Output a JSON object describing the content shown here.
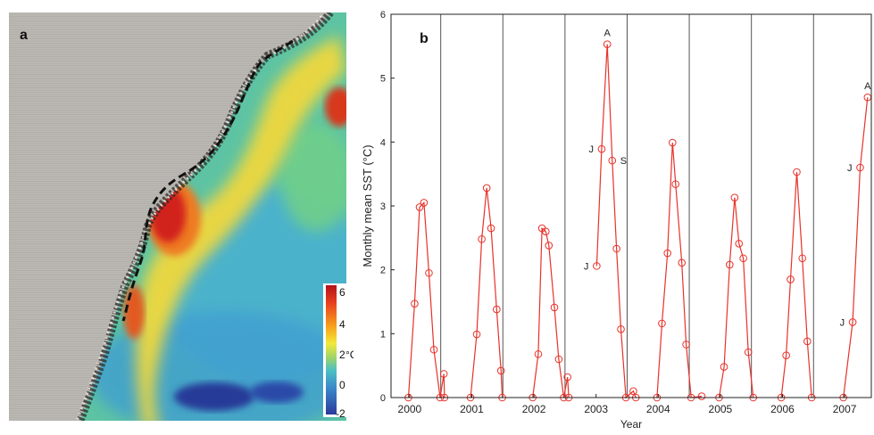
{
  "panel_a": {
    "label": "a",
    "colorbar": {
      "ticks": [
        "6",
        "4",
        "2",
        "0",
        "-2"
      ],
      "unit": "°C",
      "colors": [
        "#b3121a",
        "#e9411e",
        "#f7a21c",
        "#f2e93a",
        "#9ed46a",
        "#4bbfc4",
        "#3a86c8",
        "#2b3a9c"
      ]
    },
    "colors": {
      "land": "#b9b6b1",
      "ocean_mid": "#5fc79a",
      "ocean_cool": "#4aa9d6",
      "warm": "#f2d13a",
      "hot": "#d8281e",
      "path": "#111111"
    }
  },
  "panel_b": {
    "label": "b"
  },
  "chart_data": {
    "type": "line",
    "title": "",
    "xlabel": "Year",
    "ylabel": "Monthly mean SST (°C)",
    "ylim": [
      0,
      6
    ],
    "yticks": [
      "0",
      "1",
      "2",
      "3",
      "4",
      "5",
      "6"
    ],
    "x_range": [
      1999.7,
      2007.43
    ],
    "year_labels": [
      "2000",
      "2001",
      "2002",
      "2003",
      "2004",
      "2005",
      "2006",
      "2007"
    ],
    "year_boundaries": [
      2000.5,
      2001.5,
      2002.5,
      2003.5,
      2004.5,
      2005.5,
      2006.5
    ],
    "line_color": "#e8322a",
    "series": [
      {
        "values": [
          [
            1999.98,
            0.0
          ],
          [
            2000.08,
            1.47
          ],
          [
            2000.16,
            2.98
          ],
          [
            2000.23,
            3.05
          ],
          [
            2000.31,
            1.95
          ],
          [
            2000.39,
            0.75
          ],
          [
            2000.49,
            0.0
          ],
          [
            2000.55,
            0.37
          ],
          [
            2000.56,
            0.0
          ]
        ]
      },
      {
        "values": [
          [
            2000.98,
            0.0
          ],
          [
            2001.08,
            0.99
          ],
          [
            2001.16,
            2.48
          ],
          [
            2001.24,
            3.28
          ],
          [
            2001.31,
            2.65
          ],
          [
            2001.4,
            1.38
          ],
          [
            2001.47,
            0.42
          ],
          [
            2001.49,
            0.0
          ]
        ]
      },
      {
        "values": [
          [
            2001.98,
            0.0
          ],
          [
            2002.07,
            0.68
          ],
          [
            2002.13,
            2.65
          ],
          [
            2002.19,
            2.6
          ],
          [
            2002.24,
            2.38
          ],
          [
            2002.33,
            1.41
          ],
          [
            2002.4,
            0.6
          ],
          [
            2002.48,
            0.0
          ],
          [
            2002.54,
            0.32
          ],
          [
            2002.56,
            0.0
          ]
        ]
      },
      {
        "values": [
          [
            2003.01,
            2.06
          ],
          [
            2003.09,
            3.89
          ],
          [
            2003.18,
            5.53
          ],
          [
            2003.26,
            3.71
          ],
          [
            2003.33,
            2.33
          ],
          [
            2003.4,
            1.07
          ],
          [
            2003.48,
            0.0
          ],
          [
            2003.6,
            0.1
          ],
          [
            2003.64,
            0.0
          ]
        ]
      },
      {
        "values": [
          [
            2003.98,
            0.0
          ],
          [
            2004.06,
            1.16
          ],
          [
            2004.15,
            2.26
          ],
          [
            2004.23,
            3.99
          ],
          [
            2004.28,
            3.34
          ],
          [
            2004.38,
            2.11
          ],
          [
            2004.45,
            0.83
          ],
          [
            2004.53,
            0.0
          ],
          [
            2004.7,
            0.02
          ]
        ]
      },
      {
        "values": [
          [
            2004.98,
            0.0
          ],
          [
            2005.06,
            0.48
          ],
          [
            2005.15,
            2.08
          ],
          [
            2005.23,
            3.13
          ],
          [
            2005.3,
            2.41
          ],
          [
            2005.37,
            2.18
          ],
          [
            2005.45,
            0.71
          ],
          [
            2005.53,
            0.0
          ]
        ]
      },
      {
        "values": [
          [
            2005.98,
            0.0
          ],
          [
            2006.06,
            0.66
          ],
          [
            2006.13,
            1.85
          ],
          [
            2006.23,
            3.53
          ],
          [
            2006.32,
            2.18
          ],
          [
            2006.4,
            0.88
          ],
          [
            2006.47,
            0.0
          ]
        ]
      },
      {
        "values": [
          [
            2006.98,
            0.0
          ],
          [
            2007.13,
            1.18
          ],
          [
            2007.25,
            3.6
          ],
          [
            2007.37,
            4.7
          ]
        ]
      }
    ],
    "annotations": [
      {
        "text": "A",
        "x": 2003.18,
        "y": 5.53,
        "pos": "above"
      },
      {
        "text": "J",
        "x": 2003.09,
        "y": 3.89,
        "pos": "left"
      },
      {
        "text": "S",
        "x": 2003.26,
        "y": 3.71,
        "pos": "right"
      },
      {
        "text": "J",
        "x": 2003.01,
        "y": 2.06,
        "pos": "left"
      },
      {
        "text": "A",
        "x": 2007.37,
        "y": 4.7,
        "pos": "above"
      },
      {
        "text": "J",
        "x": 2007.25,
        "y": 3.6,
        "pos": "left"
      },
      {
        "text": "J",
        "x": 2007.13,
        "y": 1.18,
        "pos": "left"
      }
    ]
  }
}
